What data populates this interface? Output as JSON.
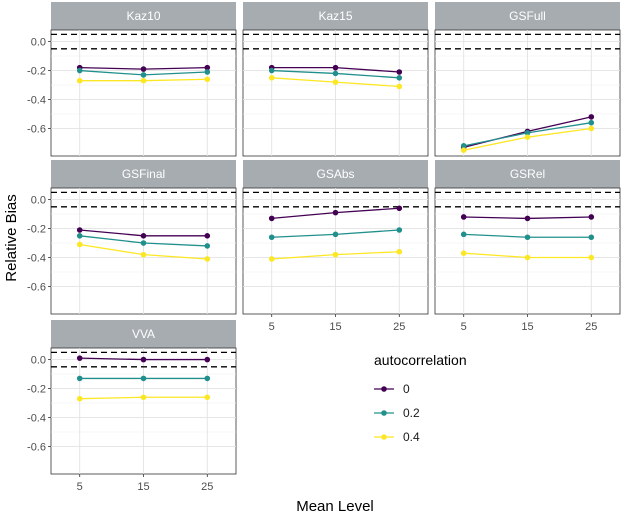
{
  "chart_data": {
    "type": "line",
    "facet_layout": "3x3 facet grid",
    "xlabel": "Mean Level",
    "ylabel": "Relative Bias",
    "x": [
      5,
      15,
      25
    ],
    "x_tick_labels": [
      "5",
      "15",
      "25"
    ],
    "y_ticks": [
      0.0,
      -0.2,
      -0.4,
      -0.6
    ],
    "y_tick_labels": [
      "0.0",
      "-0.2",
      "-0.4",
      "-0.6"
    ],
    "ylim": [
      -0.79,
      0.08
    ],
    "reference_lines": [
      0.05,
      -0.05
    ],
    "grid": true,
    "legend": {
      "title": "autocorrelation",
      "placement": "bottom-right",
      "entries": [
        {
          "label": "0",
          "color": "#440154"
        },
        {
          "label": "0.2",
          "color": "#21908C"
        },
        {
          "label": "0.4",
          "color": "#FDE725"
        }
      ]
    },
    "panels": [
      {
        "title": "Kaz10",
        "series": [
          {
            "name": "0",
            "values": [
              -0.18,
              -0.19,
              -0.18
            ]
          },
          {
            "name": "0.2",
            "values": [
              -0.2,
              -0.23,
              -0.21
            ]
          },
          {
            "name": "0.4",
            "values": [
              -0.27,
              -0.27,
              -0.26
            ]
          }
        ]
      },
      {
        "title": "Kaz15",
        "series": [
          {
            "name": "0",
            "values": [
              -0.18,
              -0.18,
              -0.21
            ]
          },
          {
            "name": "0.2",
            "values": [
              -0.2,
              -0.22,
              -0.25
            ]
          },
          {
            "name": "0.4",
            "values": [
              -0.25,
              -0.28,
              -0.31
            ]
          }
        ]
      },
      {
        "title": "GSFull",
        "series": [
          {
            "name": "0",
            "values": [
              -0.73,
              -0.62,
              -0.52
            ]
          },
          {
            "name": "0.2",
            "values": [
              -0.72,
              -0.63,
              -0.56
            ]
          },
          {
            "name": "0.4",
            "values": [
              -0.75,
              -0.66,
              -0.6
            ]
          }
        ]
      },
      {
        "title": "GSFinal",
        "series": [
          {
            "name": "0",
            "values": [
              -0.21,
              -0.25,
              -0.25
            ]
          },
          {
            "name": "0.2",
            "values": [
              -0.25,
              -0.3,
              -0.32
            ]
          },
          {
            "name": "0.4",
            "values": [
              -0.31,
              -0.38,
              -0.41
            ]
          }
        ]
      },
      {
        "title": "GSAbs",
        "series": [
          {
            "name": "0",
            "values": [
              -0.13,
              -0.09,
              -0.06
            ]
          },
          {
            "name": "0.2",
            "values": [
              -0.26,
              -0.24,
              -0.21
            ]
          },
          {
            "name": "0.4",
            "values": [
              -0.41,
              -0.38,
              -0.36
            ]
          }
        ]
      },
      {
        "title": "GSRel",
        "series": [
          {
            "name": "0",
            "values": [
              -0.12,
              -0.13,
              -0.12
            ]
          },
          {
            "name": "0.2",
            "values": [
              -0.24,
              -0.26,
              -0.26
            ]
          },
          {
            "name": "0.4",
            "values": [
              -0.37,
              -0.4,
              -0.4
            ]
          }
        ]
      },
      {
        "title": "VVA",
        "series": [
          {
            "name": "0",
            "values": [
              0.01,
              0.0,
              0.0
            ]
          },
          {
            "name": "0.2",
            "values": [
              -0.13,
              -0.13,
              -0.13
            ]
          },
          {
            "name": "0.4",
            "values": [
              -0.27,
              -0.26,
              -0.26
            ]
          }
        ]
      }
    ]
  }
}
